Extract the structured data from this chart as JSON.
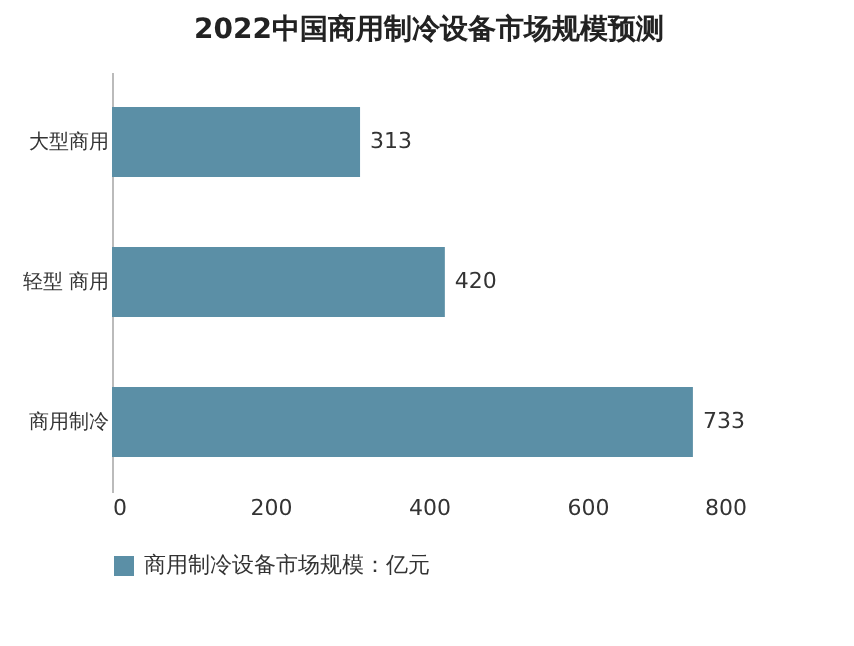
{
  "chart_data": {
    "type": "bar",
    "orientation": "horizontal",
    "title": "2022中国商用制冷设备市场规模预测",
    "categories": [
      "大型商用",
      "轻型 商用",
      "商用制冷"
    ],
    "series": [
      {
        "name": "商用制冷设备市场规模：亿元",
        "color": "#5b8fa6",
        "values": [
          313,
          420,
          733
        ]
      }
    ],
    "xlim": [
      0,
      800
    ],
    "xticks": [
      0,
      200,
      400,
      600,
      800
    ],
    "data_labels": true,
    "legend": "bottom",
    "grid": false
  }
}
